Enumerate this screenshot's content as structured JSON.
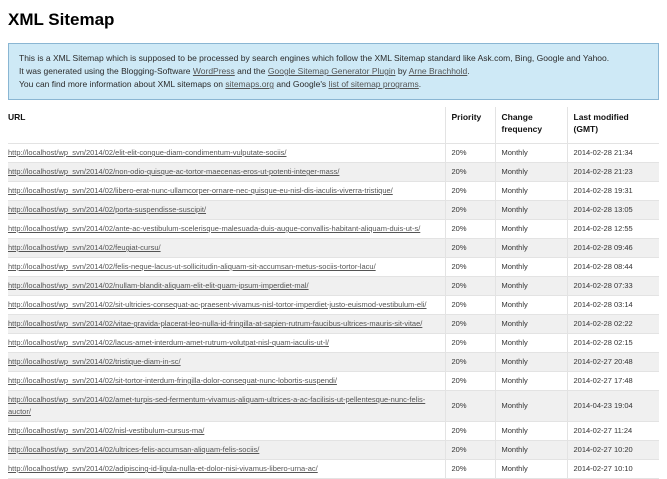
{
  "page": {
    "title": "XML Sitemap"
  },
  "colors": {
    "info_background": "#cee9f6",
    "info_border": "#8ab6d3",
    "row_stripe": "#f0f0f0",
    "link_text": "#555555",
    "cell_text": "#333333",
    "separator": "#e3e3e3"
  },
  "intro": {
    "line1": "This is a XML Sitemap which is supposed to be processed by search engines which follow the XML Sitemap standard like Ask.com, Bing, Google and Yahoo.",
    "line2": {
      "t1": "It was generated using the Blogging-Software ",
      "link_wordpress": "WordPress",
      "t2": " and the ",
      "link_plugin": "Google Sitemap Generator Plugin",
      "t3": " by ",
      "link_author": "Arne Brachhold",
      "t4": "."
    },
    "line3": {
      "t1": "You can find more information about XML sitemaps on ",
      "link_sitemaps_org": "sitemaps.org",
      "t2": " and Google's ",
      "link_programs": "list of sitemap programs",
      "t3": "."
    }
  },
  "table": {
    "headers": {
      "url": "URL",
      "priority": "Priority",
      "change_frequency": "Change frequency",
      "last_modified": "Last modified (GMT)"
    },
    "rows": [
      {
        "url": "http://localhost/wp_svn/2014/02/elit-elit-congue-diam-condimentum-vulputate-sociis/",
        "priority": "20%",
        "change_frequency": "Monthly",
        "last_modified": "2014-02-28 21:34"
      },
      {
        "url": "http://localhost/wp_svn/2014/02/non-odio-quisque-ac-tortor-maecenas-eros-ut-potenti-integer-mass/",
        "priority": "20%",
        "change_frequency": "Monthly",
        "last_modified": "2014-02-28 21:23"
      },
      {
        "url": "http://localhost/wp_svn/2014/02/libero-erat-nunc-ullamcorper-ornare-nec-quisque-eu-nisl-dis-iaculis-viverra-tristique/",
        "priority": "20%",
        "change_frequency": "Monthly",
        "last_modified": "2014-02-28 19:31"
      },
      {
        "url": "http://localhost/wp_svn/2014/02/porta-suspendisse-suscipit/",
        "priority": "20%",
        "change_frequency": "Monthly",
        "last_modified": "2014-02-28 13:05"
      },
      {
        "url": "http://localhost/wp_svn/2014/02/ante-ac-vestibulum-scelerisque-malesuada-duis-augue-convallis-habitant-aliquam-duis-ut-s/",
        "priority": "20%",
        "change_frequency": "Monthly",
        "last_modified": "2014-02-28 12:55"
      },
      {
        "url": "http://localhost/wp_svn/2014/02/feugiat-cursu/",
        "priority": "20%",
        "change_frequency": "Monthly",
        "last_modified": "2014-02-28 09:46"
      },
      {
        "url": "http://localhost/wp_svn/2014/02/felis-neque-lacus-ut-sollicitudin-aliquam-sit-accumsan-metus-sociis-tortor-lacu/",
        "priority": "20%",
        "change_frequency": "Monthly",
        "last_modified": "2014-02-28 08:44"
      },
      {
        "url": "http://localhost/wp_svn/2014/02/nullam-blandit-aliquam-elit-elit-quam-ipsum-imperdiet-mal/",
        "priority": "20%",
        "change_frequency": "Monthly",
        "last_modified": "2014-02-28 07:33"
      },
      {
        "url": "http://localhost/wp_svn/2014/02/sit-ultricies-consequat-ac-praesent-vivamus-nisl-tortor-imperdiet-justo-euismod-vestibulum-eli/",
        "priority": "20%",
        "change_frequency": "Monthly",
        "last_modified": "2014-02-28 03:14"
      },
      {
        "url": "http://localhost/wp_svn/2014/02/vitae-gravida-placerat-leo-nulla-id-fringilla-at-sapien-rutrum-faucibus-ultrices-mauris-sit-vitae/",
        "priority": "20%",
        "change_frequency": "Monthly",
        "last_modified": "2014-02-28 02:22"
      },
      {
        "url": "http://localhost/wp_svn/2014/02/lacus-amet-interdum-amet-rutrum-volutpat-nisl-quam-iaculis-ut-l/",
        "priority": "20%",
        "change_frequency": "Monthly",
        "last_modified": "2014-02-28 02:15"
      },
      {
        "url": "http://localhost/wp_svn/2014/02/tristique-diam-in-sc/",
        "priority": "20%",
        "change_frequency": "Monthly",
        "last_modified": "2014-02-27 20:48"
      },
      {
        "url": "http://localhost/wp_svn/2014/02/sit-tortor-interdum-fringilla-dolor-consequat-nunc-lobortis-suspendi/",
        "priority": "20%",
        "change_frequency": "Monthly",
        "last_modified": "2014-02-27 17:48"
      },
      {
        "url": "http://localhost/wp_svn/2014/02/amet-turpis-sed-fermentum-vivamus-aliquam-ultrices-a-ac-facilisis-ut-pellentesque-nunc-felis-auctor/",
        "priority": "20%",
        "change_frequency": "Monthly",
        "last_modified": "2014-04-23 19:04"
      },
      {
        "url": "http://localhost/wp_svn/2014/02/nisl-vestibulum-cursus-ma/",
        "priority": "20%",
        "change_frequency": "Monthly",
        "last_modified": "2014-02-27 11:24"
      },
      {
        "url": "http://localhost/wp_svn/2014/02/ultrices-felis-accumsan-aliquam-felis-sociis/",
        "priority": "20%",
        "change_frequency": "Monthly",
        "last_modified": "2014-02-27 10:20"
      },
      {
        "url": "http://localhost/wp_svn/2014/02/adipiscing-id-ligula-nulla-et-dolor-nisi-vivamus-libero-urna-ac/",
        "priority": "20%",
        "change_frequency": "Monthly",
        "last_modified": "2014-02-27 10:10"
      }
    ]
  }
}
